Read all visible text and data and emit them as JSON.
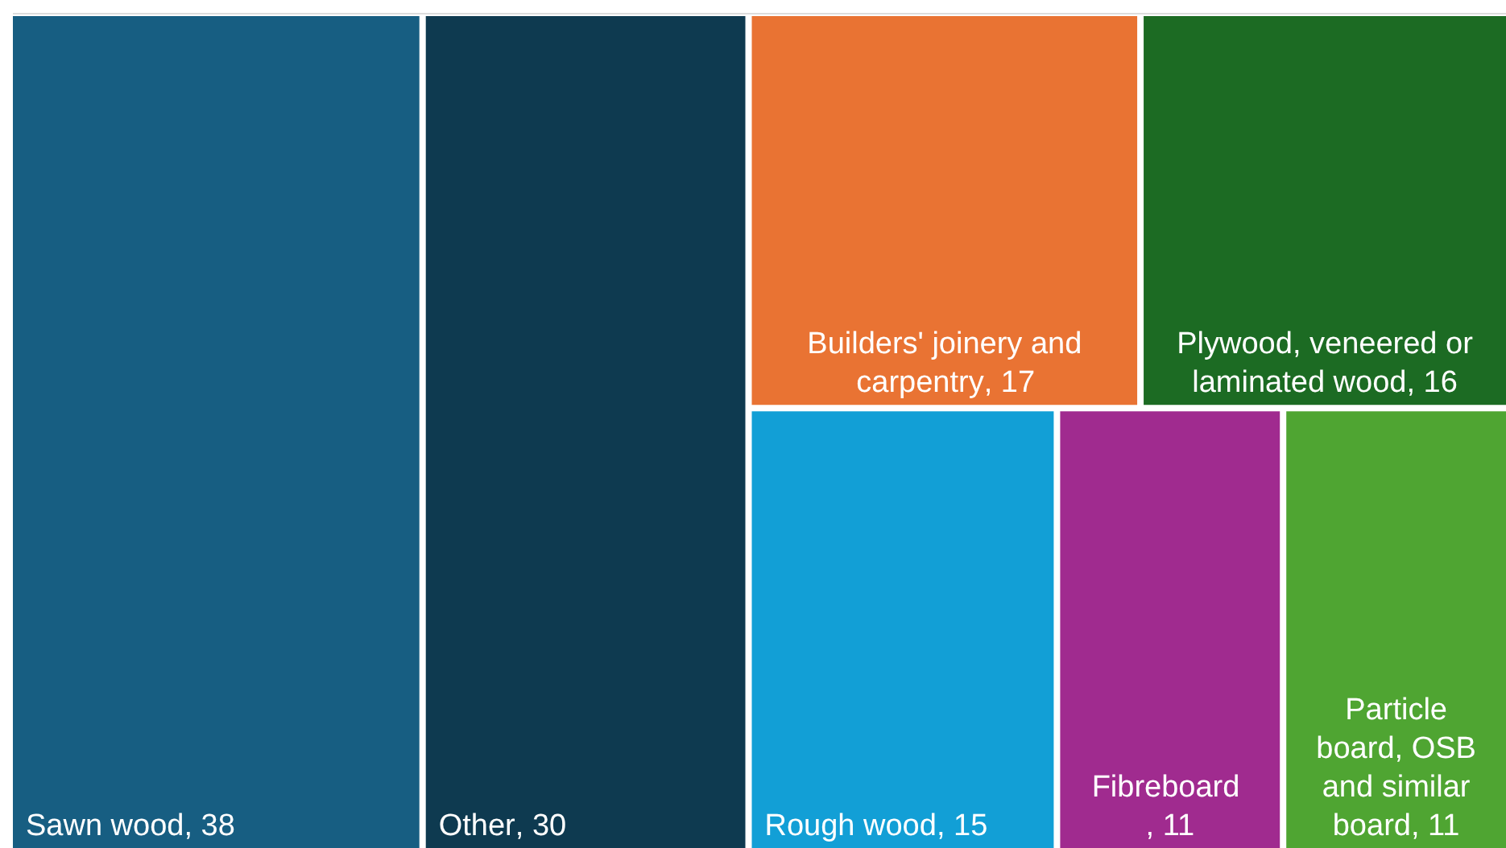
{
  "chart_data": {
    "type": "other",
    "categories": [
      "Sawn wood",
      "Other",
      "Builders' joinery and carpentry",
      "Plywood, veneered or laminated wood",
      "Rough wood",
      "Fibreboard ",
      "Particle board, OSB and similar board"
    ],
    "value_labels": [
      ", 38",
      ", 30",
      ", 17",
      ", 16",
      ", 15",
      ", 11",
      ", 11"
    ],
    "values": [
      38,
      30,
      17,
      16,
      15,
      11,
      11
    ],
    "colors": [
      "#175e82",
      "#0e3a50",
      "#e97333",
      "#1c6b23",
      "#129fd6",
      "#a02b8f",
      "#4fa532"
    ]
  }
}
